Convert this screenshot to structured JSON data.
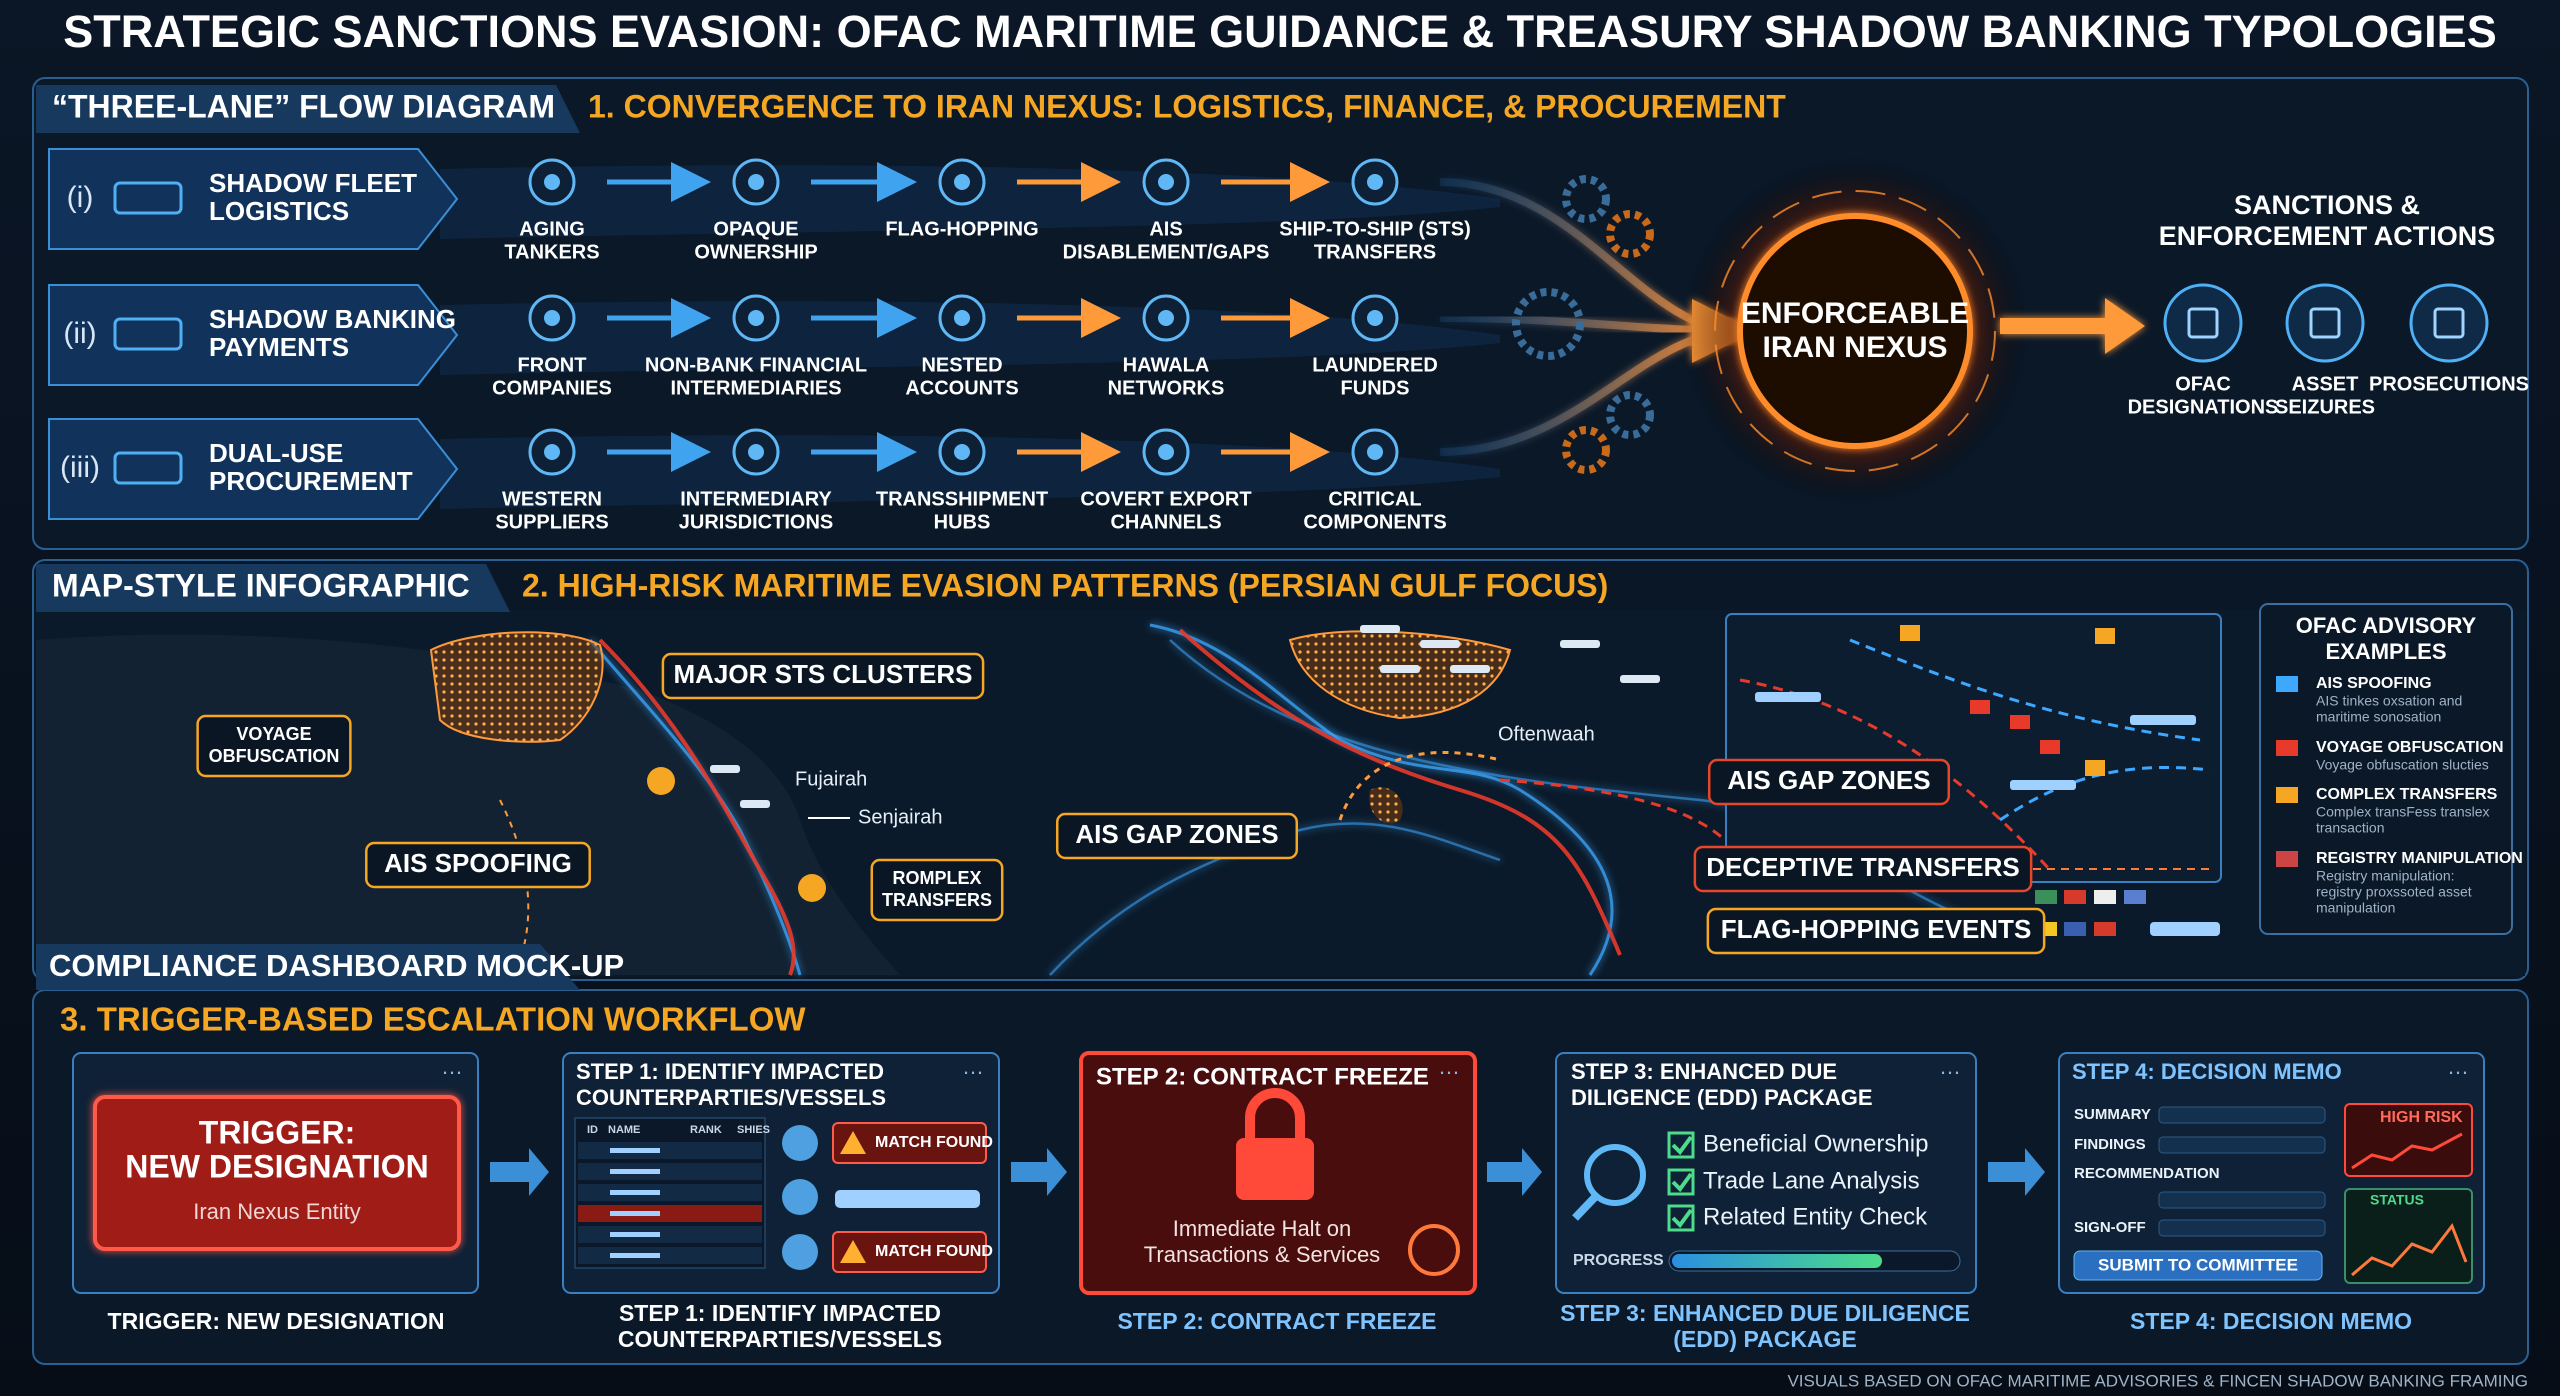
{
  "title": "STRATEGIC SANCTIONS EVASION: OFAC MARITIME GUIDANCE & TREASURY SHADOW BANKING TYPOLOGIES",
  "flow": {
    "tag": "“THREE-LANE” FLOW DIAGRAM",
    "heading": "1. CONVERGENCE TO IRAN NEXUS: LOGISTICS, FINANCE, & PROCUREMENT",
    "lanes": [
      {
        "numeral": "(i)",
        "label": [
          "SHADOW FLEET",
          "LOGISTICS"
        ],
        "steps": [
          [
            "AGING",
            "TANKERS"
          ],
          [
            "OPAQUE",
            "OWNERSHIP"
          ],
          [
            "FLAG-HOPPING"
          ],
          [
            "AIS",
            "DISABLEMENT/GAPS"
          ],
          [
            "SHIP-TO-SHIP (STS)",
            "TRANSFERS"
          ]
        ]
      },
      {
        "numeral": "(ii)",
        "label": [
          "SHADOW BANKING",
          "PAYMENTS"
        ],
        "steps": [
          [
            "FRONT",
            "COMPANIES"
          ],
          [
            "NON-BANK FINANCIAL",
            "INTERMEDIARIES"
          ],
          [
            "NESTED",
            "ACCOUNTS"
          ],
          [
            "HAWALA",
            "NETWORKS"
          ],
          [
            "LAUNDERED",
            "FUNDS"
          ]
        ]
      },
      {
        "numeral": "(iii)",
        "label": [
          "DUAL-USE",
          "PROCUREMENT"
        ],
        "steps": [
          [
            "WESTERN",
            "SUPPLIERS"
          ],
          [
            "INTERMEDIARY",
            "JURISDICTIONS"
          ],
          [
            "TRANSSHIPMENT",
            "HUBS"
          ],
          [
            "COVERT EXPORT",
            "CHANNELS"
          ],
          [
            "CRITICAL",
            "COMPONENTS"
          ]
        ]
      }
    ],
    "hub": [
      "ENFORCEABLE",
      "IRAN NEXUS"
    ],
    "actions_title": [
      "SANCTIONS &",
      "ENFORCEMENT ACTIONS"
    ],
    "actions": [
      [
        "OFAC",
        "DESIGNATIONS"
      ],
      [
        "ASSET",
        "SEIZURES"
      ],
      [
        "PROSECUTIONS"
      ]
    ]
  },
  "map": {
    "tag": "MAP-STYLE INFOGRAPHIC",
    "heading": "2. HIGH-RISK MARITIME EVASION PATTERNS (PERSIAN GULF FOCUS)",
    "callouts": [
      [
        "VOYAGE",
        "OBFUSCATION"
      ],
      [
        "MAJOR STS CLUSTERS"
      ],
      [
        "AIS SPOOFING"
      ],
      [
        "ROMPLEX",
        "TRANSFERS"
      ],
      [
        "AIS GAP ZONES"
      ],
      [
        "AIS GAP ZONES"
      ],
      [
        "DECEPTIVE TRANSFERS"
      ],
      [
        "FLAG-HOPPING EVENTS"
      ]
    ],
    "places": [
      "Fujairah",
      "Senjairah",
      "Oftenwaah"
    ],
    "legend": {
      "title": [
        "OFAC ADVISORY",
        "EXAMPLES"
      ],
      "items": [
        {
          "name": "AIS SPOOFING",
          "desc": [
            "AIS tinkes oxsation and",
            "maritime sonosation"
          ]
        },
        {
          "name": "VOYAGE OBFUSCATION",
          "desc": [
            "Voyage obfuscation slucties"
          ]
        },
        {
          "name": "COMPLEX TRANSFERS",
          "desc": [
            "Complex transFess translex",
            "transaction"
          ]
        },
        {
          "name": "REGISTRY MANIPULATION",
          "desc": [
            "Registry manipulation:",
            "registry proxssoted asset",
            "manipulation"
          ]
        }
      ]
    }
  },
  "workflow": {
    "tag": "COMPLIANCE DASHBOARD MOCK-UP",
    "heading": "3. TRIGGER-BASED ESCALATION WORKFLOW",
    "trigger": {
      "title": [
        "TRIGGER:",
        "NEW DESIGNATION"
      ],
      "subtitle": "Iran Nexus Entity",
      "caption": "TRIGGER: NEW DESIGNATION"
    },
    "step1": {
      "header": [
        "STEP 1: IDENTIFY IMPACTED",
        "COUNTERPARTIES/VESSELS"
      ],
      "columns": [
        "ID",
        "NAME",
        "RANK",
        "SHIES"
      ],
      "alerts": [
        "MATCH FOUND",
        "MATCH FOUND"
      ],
      "caption": [
        "STEP 1: IDENTIFY IMPACTED",
        "COUNTERPARTIES/VESSELS"
      ]
    },
    "step2": {
      "header": "STEP 2: CONTRACT FREEZE",
      "body": [
        "Immediate Halt on",
        "Transactions & Services"
      ],
      "caption": "STEP 2: CONTRACT FREEZE"
    },
    "step3": {
      "header": [
        "STEP 3: ENHANCED DUE",
        "DILIGENCE (EDD) PACKAGE"
      ],
      "checks": [
        "Beneficial Ownership",
        "Trade Lane Analysis",
        "Related Entity Check"
      ],
      "progress_label": "PROGRESS",
      "caption": [
        "STEP 3: ENHANCED DUE DILIGENCE",
        "(EDD) PACKAGE"
      ]
    },
    "step4": {
      "header": "STEP 4: DECISION MEMO",
      "fields": [
        "SUMMARY",
        "FINDINGS",
        "RECOMMENDATION",
        "SIGN-OFF"
      ],
      "button": "SUBMIT TO COMMITTEE",
      "risk": "HIGH RISK",
      "status": "STATUS",
      "caption": "STEP 4: DECISION MEMO"
    }
  },
  "footer": "VISUALS BASED ON OFAC MARITIME ADVISORIES & FINCEN SHADOW BANKING FRAMING"
}
